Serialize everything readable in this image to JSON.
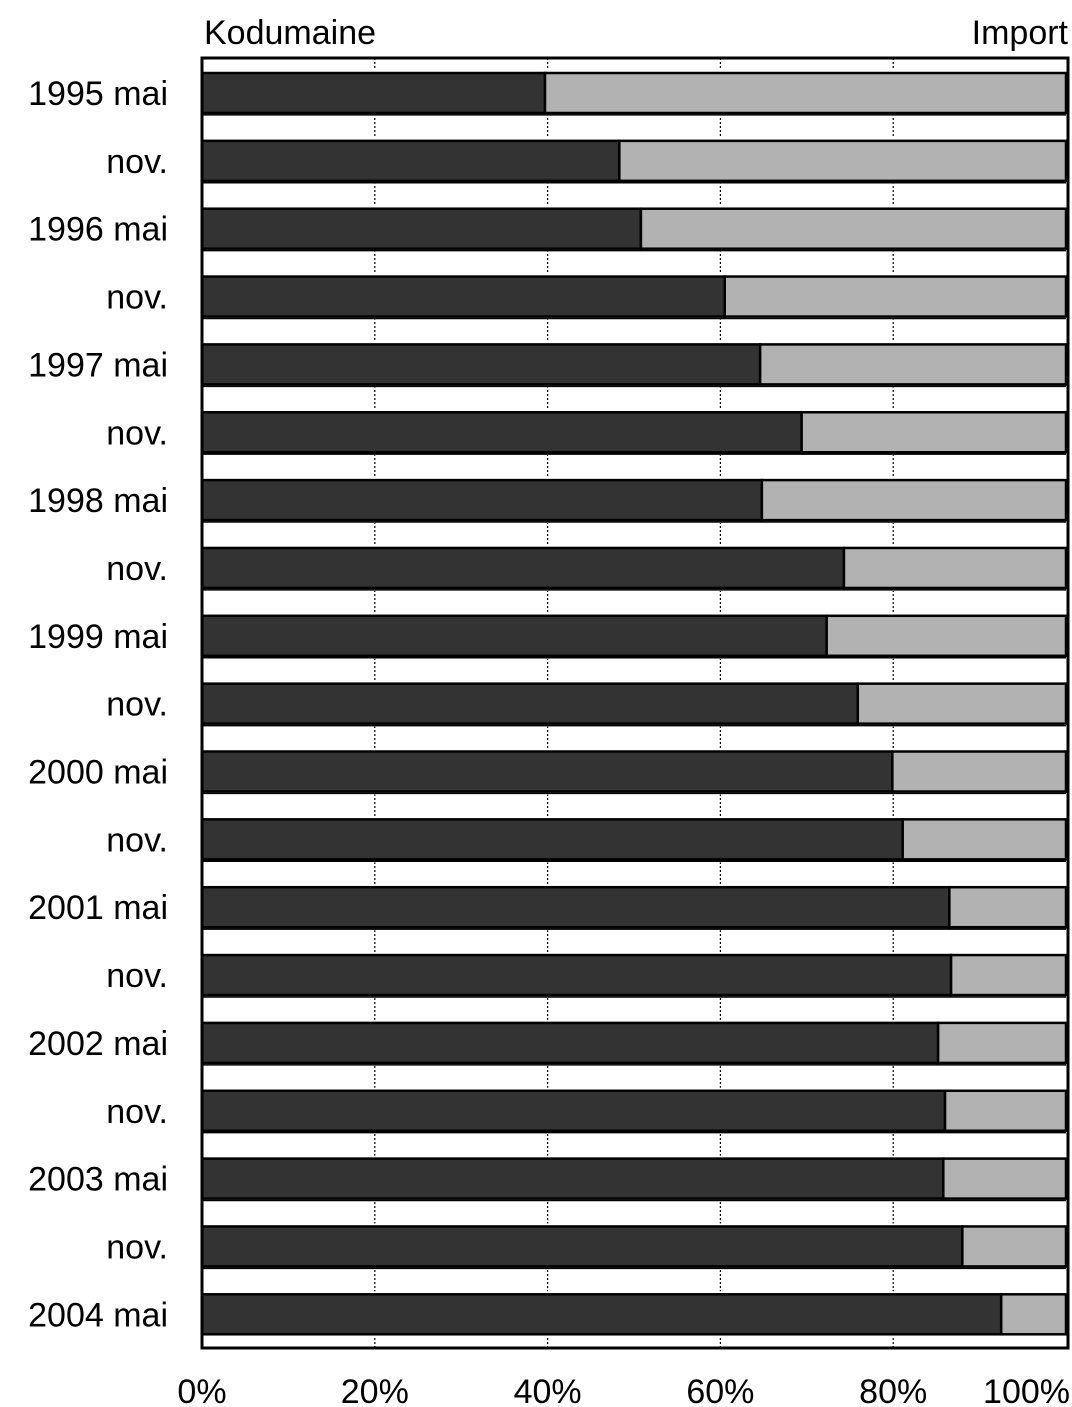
{
  "chart_data": {
    "type": "bar",
    "orientation": "horizontal",
    "stacked": "percent",
    "categories": [
      "1995 mai",
      "nov.",
      "1996 mai",
      "nov.",
      "1997 mai",
      "nov.",
      "1998 mai",
      "nov.",
      "1999 mai",
      "nov.",
      "2000 mai",
      "nov.",
      "2001 mai",
      "nov.",
      "2002 mai",
      "nov.",
      "2003 mai",
      "nov.",
      "2004 mai"
    ],
    "series": [
      {
        "name": "Kodumaine",
        "color": "#333333",
        "values": [
          39.7,
          48.3,
          50.8,
          60.5,
          64.6,
          69.4,
          64.8,
          74.3,
          72.3,
          75.9,
          79.9,
          81.1,
          86.5,
          86.7,
          85.2,
          86.0,
          85.8,
          88.0,
          92.5
        ]
      },
      {
        "name": "Import",
        "color": "#b2b2b2",
        "values": [
          60.3,
          51.7,
          49.2,
          39.5,
          35.4,
          30.6,
          35.2,
          25.7,
          27.7,
          24.1,
          20.1,
          18.9,
          13.5,
          13.3,
          14.8,
          14.0,
          14.2,
          12.0,
          7.5
        ]
      }
    ],
    "xlim": [
      0,
      100
    ],
    "xticks": [
      "0%",
      "20%",
      "40%",
      "60%",
      "80%",
      "100%"
    ],
    "grid": "vertical dotted",
    "legend_labels_placement": "top-left and top-right"
  }
}
